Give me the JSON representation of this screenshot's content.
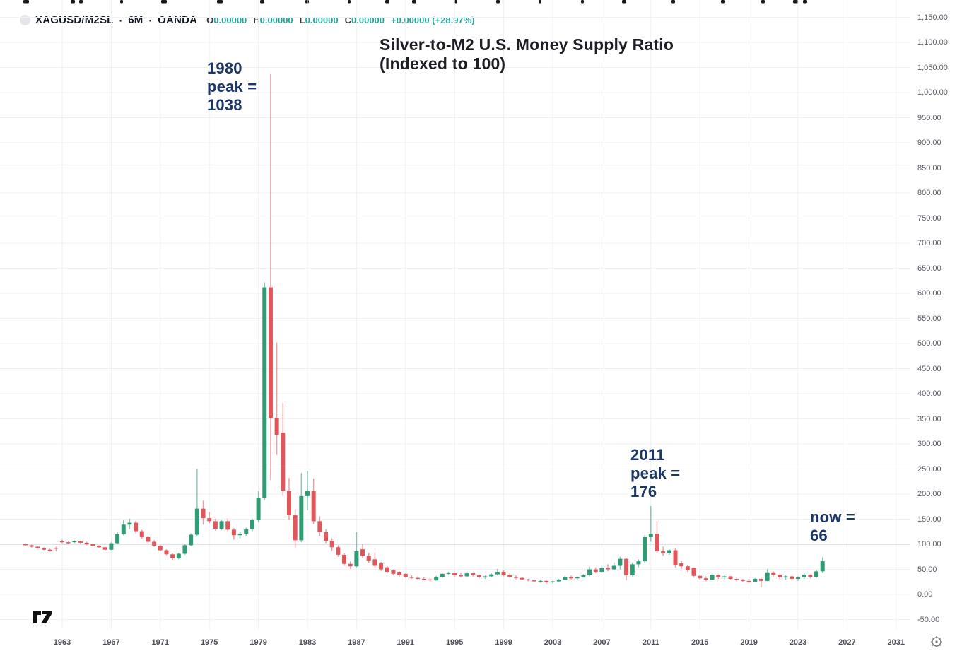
{
  "header": {
    "symbol": "XAGUSD/M2SL",
    "separator": "·",
    "interval": "6M",
    "exchange": "OANDA",
    "ohlc_fields": [
      {
        "label": "O",
        "value": "0.00000"
      },
      {
        "label": "H",
        "value": "0.00000"
      },
      {
        "label": "L",
        "value": "0.00000"
      },
      {
        "label": "C",
        "value": "0.00000"
      }
    ],
    "change": "+0.00000 (+28.97%)",
    "value_color": "#26a69a"
  },
  "annotations": {
    "peak1980": {
      "lines": [
        "1980",
        "peak =",
        "1038"
      ]
    },
    "peak2011": {
      "lines": [
        "2011",
        "peak =",
        "176"
      ]
    },
    "now": {
      "lines": [
        "now =",
        "66"
      ]
    }
  },
  "chart_data": {
    "type": "candlestick",
    "title": "Silver-to-M2 U.S. Money Supply Ratio",
    "subtitle": "(Indexed to 100)",
    "series_name": "XAGUSD/M2SL",
    "timeframe": "6M",
    "x_start_year": 1960,
    "x_step_years": 0.5,
    "baseline_value": 100,
    "key_points": {
      "peak_1980": 1038,
      "peak_2011": 176,
      "now": 66
    },
    "up_color": "#2f9c74",
    "down_color": "#e0565b",
    "baseline_color": "#cbced5",
    "grid_color": "#f0f1f4",
    "y_axis": {
      "min": -50,
      "max": 1150,
      "step": 50,
      "labels": [
        "1,150.00",
        "1,100.00",
        "1,050.00",
        "1,000.00",
        "950.00",
        "900.00",
        "850.00",
        "800.00",
        "750.00",
        "700.00",
        "650.00",
        "600.00",
        "550.00",
        "500.00",
        "450.00",
        "400.00",
        "350.00",
        "300.00",
        "250.00",
        "200.00",
        "150.00",
        "100.00",
        "50.00",
        "0.00",
        "-50.00"
      ],
      "values": [
        1150,
        1100,
        1050,
        1000,
        950,
        900,
        850,
        800,
        750,
        700,
        650,
        600,
        550,
        500,
        450,
        400,
        350,
        300,
        250,
        200,
        150,
        100,
        50,
        0,
        -50
      ]
    },
    "x_axis": {
      "tick_years": [
        1963,
        1967,
        1971,
        1975,
        1979,
        1983,
        1987,
        1991,
        1995,
        1999,
        2003,
        2007,
        2011,
        2015,
        2019,
        2023,
        2027,
        2031
      ]
    },
    "ohlc": [
      [
        100,
        102,
        96,
        98
      ],
      [
        98,
        99,
        93,
        95
      ],
      [
        95,
        96,
        91,
        92
      ],
      [
        92,
        94,
        88,
        89
      ],
      [
        89,
        91,
        85,
        86
      ],
      [
        93,
        95,
        86,
        91
      ],
      [
        106,
        109,
        102,
        104
      ],
      [
        104,
        107,
        100,
        102
      ],
      [
        104,
        108,
        102,
        106
      ],
      [
        106,
        107,
        101,
        103
      ],
      [
        103,
        105,
        98,
        100
      ],
      [
        100,
        101,
        95,
        97
      ],
      [
        97,
        98,
        92,
        94
      ],
      [
        94,
        95,
        87,
        89
      ],
      [
        89,
        104,
        88,
        102
      ],
      [
        102,
        124,
        100,
        120
      ],
      [
        120,
        149,
        118,
        139
      ],
      [
        139,
        151,
        130,
        143
      ],
      [
        143,
        147,
        122,
        126
      ],
      [
        126,
        129,
        111,
        114
      ],
      [
        114,
        117,
        103,
        105
      ],
      [
        105,
        108,
        95,
        97
      ],
      [
        97,
        99,
        86,
        88
      ],
      [
        88,
        90,
        78,
        80
      ],
      [
        80,
        82,
        69,
        72
      ],
      [
        72,
        83,
        70,
        81
      ],
      [
        81,
        100,
        79,
        98
      ],
      [
        98,
        122,
        96,
        119
      ],
      [
        119,
        250,
        116,
        171
      ],
      [
        171,
        187,
        139,
        152
      ],
      [
        152,
        164,
        142,
        146
      ],
      [
        146,
        151,
        127,
        131
      ],
      [
        131,
        149,
        128,
        146
      ],
      [
        146,
        152,
        126,
        129
      ],
      [
        129,
        132,
        109,
        118
      ],
      [
        118,
        124,
        112,
        121
      ],
      [
        121,
        133,
        117,
        130
      ],
      [
        130,
        151,
        126,
        148
      ],
      [
        148,
        206,
        144,
        193
      ],
      [
        193,
        622,
        188,
        612
      ],
      [
        612,
        1038,
        228,
        352
      ],
      [
        352,
        502,
        278,
        318
      ],
      [
        322,
        382,
        196,
        206
      ],
      [
        206,
        232,
        148,
        158
      ],
      [
        158,
        170,
        92,
        108
      ],
      [
        108,
        242,
        104,
        196
      ],
      [
        196,
        246,
        168,
        206
      ],
      [
        206,
        231,
        140,
        146
      ],
      [
        146,
        156,
        117,
        124
      ],
      [
        124,
        130,
        102,
        107
      ],
      [
        107,
        112,
        87,
        94
      ],
      [
        94,
        98,
        75,
        79
      ],
      [
        79,
        82,
        57,
        61
      ],
      [
        61,
        66,
        51,
        56
      ],
      [
        56,
        124,
        54,
        86
      ],
      [
        90,
        101,
        73,
        77
      ],
      [
        77,
        83,
        63,
        67
      ],
      [
        70,
        84,
        54,
        57
      ],
      [
        62,
        65,
        47,
        50
      ],
      [
        54,
        57,
        42,
        45
      ],
      [
        48,
        50,
        38,
        41
      ],
      [
        45,
        46,
        36,
        38
      ],
      [
        41,
        42,
        33,
        35
      ],
      [
        35,
        38,
        31,
        33
      ],
      [
        33,
        36,
        29,
        31
      ],
      [
        31,
        34,
        28,
        30
      ],
      [
        30,
        32,
        26,
        28
      ],
      [
        28,
        37,
        27,
        35
      ],
      [
        35,
        43,
        33,
        41
      ],
      [
        41,
        45,
        38,
        43
      ],
      [
        43,
        44,
        36,
        38
      ],
      [
        38,
        42,
        34,
        36
      ],
      [
        36,
        46,
        35,
        42
      ],
      [
        42,
        44,
        36,
        38
      ],
      [
        38,
        40,
        32,
        35
      ],
      [
        35,
        38,
        31,
        36
      ],
      [
        36,
        42,
        34,
        40
      ],
      [
        40,
        51,
        38,
        45
      ],
      [
        45,
        48,
        36,
        38
      ],
      [
        38,
        42,
        33,
        35
      ],
      [
        35,
        38,
        30,
        33
      ],
      [
        33,
        34,
        28,
        30
      ],
      [
        30,
        31,
        26,
        28
      ],
      [
        28,
        30,
        24,
        26
      ],
      [
        26,
        29,
        23,
        27
      ],
      [
        27,
        28,
        22,
        24
      ],
      [
        24,
        27,
        22,
        26
      ],
      [
        26,
        31,
        24,
        29
      ],
      [
        29,
        37,
        28,
        35
      ],
      [
        35,
        38,
        30,
        32
      ],
      [
        32,
        36,
        29,
        34
      ],
      [
        34,
        40,
        33,
        38
      ],
      [
        38,
        55,
        36,
        50
      ],
      [
        50,
        54,
        42,
        45
      ],
      [
        45,
        57,
        43,
        53
      ],
      [
        53,
        60,
        46,
        50
      ],
      [
        50,
        64,
        48,
        57
      ],
      [
        57,
        75,
        50,
        71
      ],
      [
        71,
        72,
        28,
        38
      ],
      [
        38,
        63,
        36,
        60
      ],
      [
        60,
        70,
        54,
        66
      ],
      [
        66,
        118,
        62,
        114
      ],
      [
        114,
        176,
        105,
        121
      ],
      [
        121,
        146,
        83,
        86
      ],
      [
        86,
        95,
        77,
        82
      ],
      [
        82,
        90,
        79,
        88
      ],
      [
        88,
        92,
        54,
        58
      ],
      [
        62,
        67,
        51,
        56
      ],
      [
        56,
        58,
        45,
        48
      ],
      [
        53,
        54,
        34,
        37
      ],
      [
        37,
        39,
        29,
        32
      ],
      [
        32,
        36,
        26,
        29
      ],
      [
        29,
        42,
        28,
        39
      ],
      [
        39,
        40,
        31,
        34
      ],
      [
        34,
        38,
        30,
        36
      ],
      [
        36,
        37,
        29,
        31
      ],
      [
        31,
        33,
        26,
        29
      ],
      [
        29,
        31,
        25,
        27
      ],
      [
        27,
        31,
        23,
        25
      ],
      [
        25,
        33,
        24,
        31
      ],
      [
        31,
        32,
        14,
        27
      ],
      [
        27,
        50,
        26,
        44
      ],
      [
        44,
        46,
        36,
        39
      ],
      [
        39,
        40,
        31,
        34
      ],
      [
        34,
        38,
        29,
        36
      ],
      [
        36,
        37,
        28,
        31
      ],
      [
        31,
        36,
        27,
        34
      ],
      [
        34,
        42,
        31,
        39
      ],
      [
        39,
        40,
        32,
        35
      ],
      [
        35,
        49,
        33,
        46
      ],
      [
        46,
        74,
        43,
        66
      ]
    ]
  }
}
